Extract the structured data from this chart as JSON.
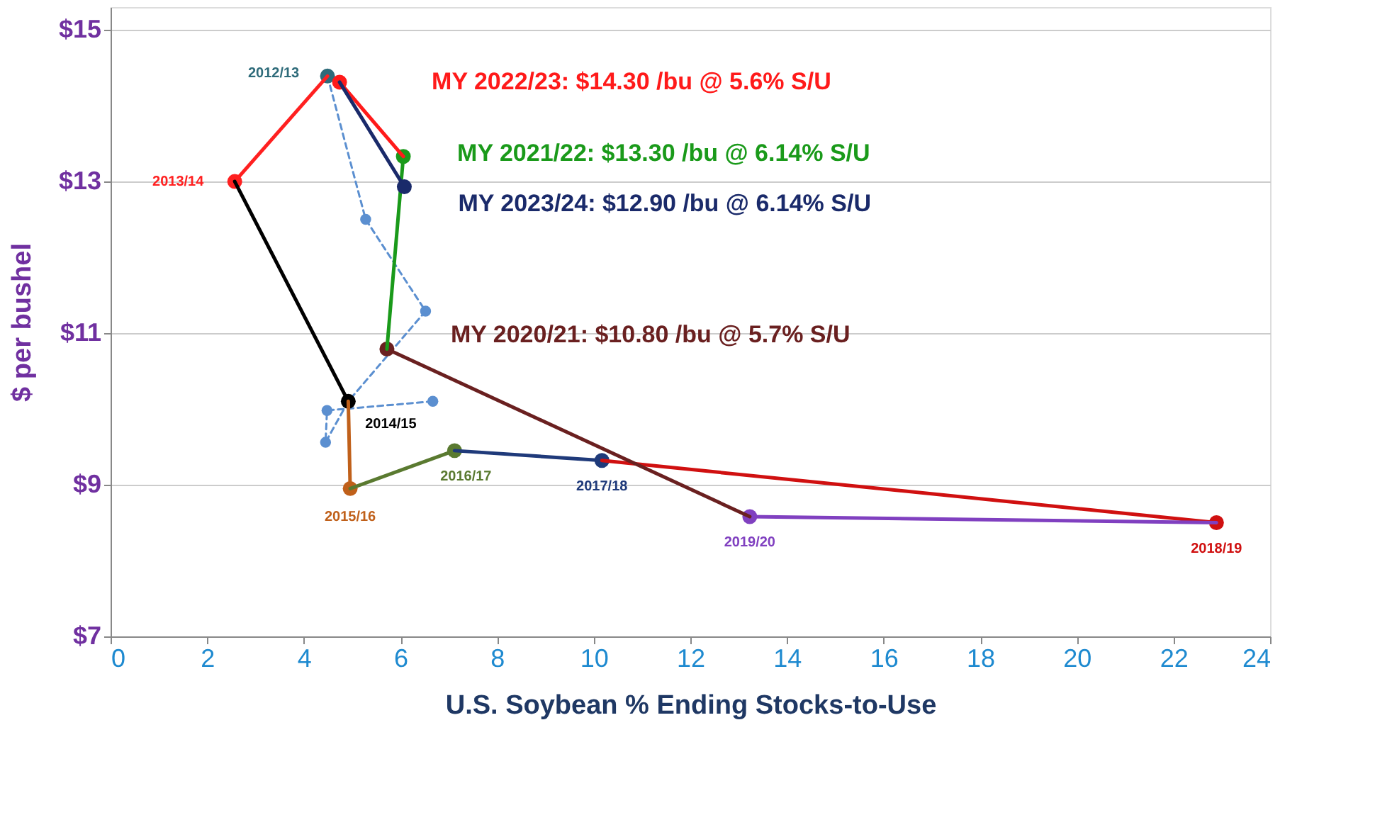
{
  "chart_data": {
    "type": "line",
    "xlabel": "U.S. Soybean % Ending Stocks-to-Use",
    "ylabel": "$ per bushel",
    "xlim": [
      0,
      24
    ],
    "xticks": [
      0,
      2,
      4,
      6,
      8,
      10,
      12,
      14,
      16,
      18,
      20,
      22,
      24
    ],
    "ylim": [
      7,
      15.3
    ],
    "yticks": [
      {
        "value": 7,
        "label": "$7"
      },
      {
        "value": 9,
        "label": "$9"
      },
      {
        "value": 11,
        "label": "$11"
      },
      {
        "value": 13,
        "label": "$13"
      },
      {
        "value": 15,
        "label": "$15"
      }
    ],
    "grid": "y",
    "legend": false,
    "marker": "circle",
    "line_style": "solid",
    "series": [
      {
        "color": "#5b8fd0",
        "line_style": "dashed",
        "x": [
          4.49,
          5.28,
          6.52,
          4.92,
          4.45,
          4.48,
          6.67
        ],
        "values": [
          14.39,
          12.5,
          11.29,
          10.1,
          9.56,
          9.98,
          10.1
        ]
      },
      {
        "name": "2012/13",
        "color": "#2e6b7a",
        "x": [
          4.49
        ],
        "values": [
          14.39
        ]
      },
      {
        "name": "2013/14",
        "color": "#ff2020",
        "x": [
          4.49,
          2.57
        ],
        "values": [
          14.39,
          13.0
        ]
      },
      {
        "name": "2014/15",
        "color": "#000000",
        "x": [
          2.57,
          4.92
        ],
        "values": [
          13.0,
          10.1
        ]
      },
      {
        "name": "2015/16",
        "color": "#c0601a",
        "x": [
          4.92,
          4.96
        ],
        "values": [
          10.1,
          8.95
        ]
      },
      {
        "name": "2016/17",
        "color": "#5a7a30",
        "x": [
          4.96,
          7.12
        ],
        "values": [
          8.95,
          9.45
        ]
      },
      {
        "name": "2017/18",
        "color": "#1f3a7a",
        "x": [
          7.12,
          10.17
        ],
        "values": [
          9.45,
          9.32
        ]
      },
      {
        "name": "2018/19",
        "color": "#d01010",
        "x": [
          10.17,
          22.89
        ],
        "values": [
          9.32,
          8.5
        ]
      },
      {
        "name": "2019/20",
        "color": "#8040c0",
        "x": [
          22.89,
          13.23
        ],
        "values": [
          8.5,
          8.58
        ]
      },
      {
        "name": "MY 2020/21: $10.80 /bu @ 5.7% S/U",
        "color": "#6a2020",
        "x": [
          13.23,
          5.72
        ],
        "values": [
          8.58,
          10.79
        ]
      },
      {
        "name": "MY 2021/22: $13.30 /bu @ 6.14% S/U",
        "color": "#1a9a1a",
        "x": [
          5.72,
          6.06
        ],
        "values": [
          10.79,
          13.33
        ]
      },
      {
        "name": "MY 2022/23: $14.30 /bu @ 5.6% S/U",
        "color": "#ff1a1a",
        "x": [
          6.06,
          4.74
        ],
        "values": [
          13.33,
          14.31
        ]
      },
      {
        "name": "MY 2023/24: $12.90 /bu @ 6.14% S/U",
        "color": "#1a2a6a",
        "x": [
          4.74,
          6.08
        ],
        "values": [
          14.31,
          12.93
        ]
      }
    ]
  }
}
